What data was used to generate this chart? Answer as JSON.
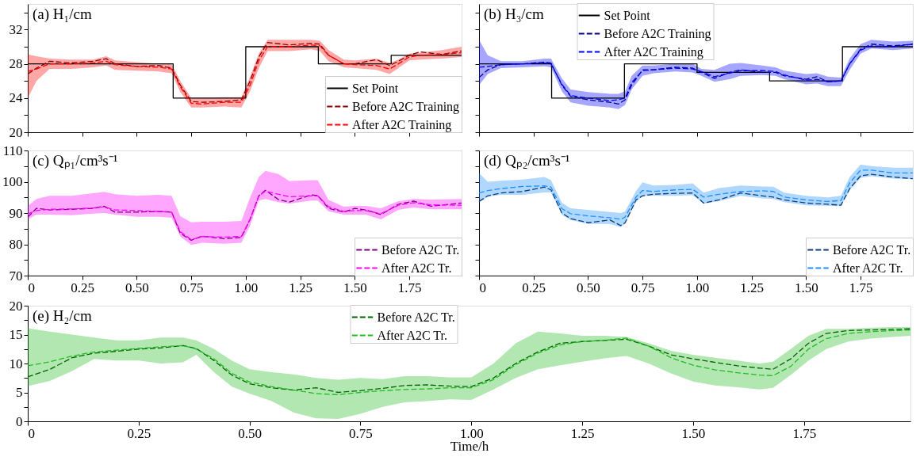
{
  "chart_data": [
    {
      "type": "line",
      "title": "(a) H₁/cm",
      "xlim": [
        0,
        1.99
      ],
      "ylim": [
        20,
        35
      ],
      "tick_labels": "y",
      "legend": "bottom right",
      "xticks": [
        0,
        0.25,
        0.5,
        0.75,
        1,
        1.25,
        1.5,
        1.75
      ],
      "yticks": [
        20,
        {
          "value": 22,
          "label": null
        },
        24,
        {
          "value": 26,
          "label": null
        },
        28,
        {
          "value": 30,
          "label": null
        },
        32,
        {
          "value": 34,
          "label": null
        }
      ],
      "x": [
        0,
        0.04,
        0.1,
        0.2,
        0.3,
        0.36,
        0.4,
        0.5,
        0.6,
        0.66,
        0.7,
        0.75,
        0.8,
        0.9,
        0.98,
        1.02,
        1.06,
        1.1,
        1.2,
        1.3,
        1.34,
        1.38,
        1.45,
        1.5,
        1.6,
        1.66,
        1.7,
        1.75,
        1.8,
        1.9,
        1.99
      ],
      "series": [
        {
          "name": "Set Point",
          "type": "step",
          "color": "#000000",
          "line_style": "solid",
          "x": [
            0,
            0.667,
            1.0,
            1.333,
            1.667,
            1.99
          ],
          "values": [
            28,
            24,
            30,
            28,
            29,
            29
          ]
        },
        {
          "name": "Before A2C Training",
          "color": "#8b0000",
          "line_style": "dashed",
          "values": [
            26.8,
            27.5,
            28.3,
            28.1,
            28.3,
            28.6,
            28.0,
            27.7,
            27.8,
            27.5,
            25.5,
            23.6,
            23.5,
            23.6,
            23.8,
            26.0,
            28.8,
            30.5,
            30.2,
            30.4,
            30.3,
            29.0,
            28.0,
            28.0,
            28.5,
            27.8,
            28.3,
            29.0,
            29.4,
            29.1,
            29.5
          ]
        },
        {
          "name": "After A2C Training",
          "color": "#ff0000",
          "line_style": "dashed",
          "values": [
            27.1,
            27.4,
            28,
            28,
            28.1,
            28.3,
            27.9,
            27.7,
            27.6,
            27.4,
            25.3,
            23.4,
            23.3,
            23.5,
            23.5,
            25.5,
            28.4,
            30,
            30,
            30.2,
            30.1,
            29,
            28,
            27.9,
            27.8,
            27.4,
            28,
            28.8,
            29,
            29.1,
            29.3
          ],
          "lower": [
            24.0,
            26,
            27.4,
            27.4,
            27.6,
            27.8,
            27.3,
            27.2,
            27.1,
            26.9,
            24.7,
            22.9,
            22.9,
            23,
            22.9,
            24.8,
            27.5,
            29.5,
            29.5,
            29.7,
            29.5,
            28.3,
            27.6,
            27.5,
            27.3,
            26.8,
            27.5,
            28.4,
            28.5,
            28.6,
            28.8
          ],
          "upper": [
            29.1,
            28.9,
            28.6,
            28.5,
            28.5,
            28.9,
            28.4,
            28.2,
            28.0,
            28,
            26,
            24,
            24.0,
            24.1,
            24.1,
            26.5,
            29.2,
            30.8,
            30.8,
            30.8,
            30.7,
            29.6,
            28.5,
            28.4,
            28.6,
            28.1,
            28.5,
            29.2,
            29.3,
            29.6,
            30.0
          ]
        }
      ]
    },
    {
      "type": "line",
      "title": "(b) H₃/cm",
      "xlim": [
        0,
        1.99
      ],
      "ylim": [
        20,
        35
      ],
      "tick_labels": false,
      "legend": "top",
      "xticks": [
        0,
        0.25,
        0.5,
        0.75,
        1,
        1.25,
        1.5,
        1.75
      ],
      "yticks": [
        20,
        {
          "value": 22,
          "label": null
        },
        24,
        {
          "value": 26,
          "label": null
        },
        28,
        {
          "value": 30,
          "label": null
        },
        32,
        {
          "value": 34,
          "label": null
        }
      ],
      "x": [
        0,
        0.04,
        0.1,
        0.2,
        0.3,
        0.33,
        0.38,
        0.42,
        0.5,
        0.6,
        0.64,
        0.67,
        0.7,
        0.75,
        0.8,
        0.9,
        0.98,
        1.02,
        1.08,
        1.15,
        1.2,
        1.3,
        1.36,
        1.4,
        1.5,
        1.55,
        1.6,
        1.66,
        1.7,
        1.75,
        1.8,
        1.9,
        1.99
      ],
      "series": [
        {
          "name": "Set Point",
          "type": "step",
          "color": "#000000",
          "line_style": "solid",
          "x": [
            0,
            0.333,
            0.667,
            1.0,
            1.333,
            1.667,
            1.99
          ],
          "values": [
            28,
            24,
            28,
            27,
            26,
            30,
            30
          ]
        },
        {
          "name": "Before A2C Training",
          "color": "#00008b",
          "line_style": "dashed",
          "values": [
            26.4,
            27.3,
            27.9,
            28.0,
            28.2,
            28.1,
            25.5,
            24.2,
            23.8,
            23.5,
            23.3,
            23.8,
            25.5,
            27.3,
            27.3,
            27.6,
            27.5,
            27.0,
            26.3,
            27.0,
            27.3,
            27.0,
            27.0,
            26.6,
            26.2,
            26.5,
            25.9,
            26.0,
            28.0,
            29.7,
            30.3,
            30.1,
            30.3
          ]
        },
        {
          "name": "After A2C Training",
          "color": "#0000ff",
          "line_style": "dashed",
          "values": [
            27.6,
            27.7,
            27.9,
            28.0,
            28.1,
            28.0,
            25.6,
            24.3,
            24.0,
            23.7,
            23.8,
            24.0,
            25.8,
            27.2,
            27.3,
            27.5,
            27.4,
            27.1,
            26.5,
            26.9,
            27.2,
            27.2,
            27.1,
            26.7,
            26.1,
            26.2,
            25.9,
            26.0,
            28.0,
            29.6,
            30.1,
            30.0,
            30.3
          ],
          "lower": [
            25.5,
            26.8,
            27.5,
            27.6,
            27.7,
            27.6,
            24.8,
            23.5,
            23.1,
            22.9,
            22.7,
            23.2,
            25.0,
            26.6,
            26.9,
            27.1,
            27.0,
            26.6,
            25.9,
            26.2,
            26.6,
            26.7,
            26.6,
            26.2,
            25.6,
            25.7,
            25.4,
            25.4,
            27.3,
            29.2,
            29.8,
            29.6,
            29.8
          ],
          "upper": [
            30.8,
            29.0,
            28.3,
            28.3,
            28.6,
            28.6,
            26.3,
            25.0,
            24.7,
            24.5,
            24.5,
            24.8,
            26.6,
            27.8,
            27.8,
            28.0,
            28.0,
            27.4,
            27.3,
            28.0,
            28.1,
            27.8,
            27.6,
            27.2,
            26.8,
            26.9,
            26.5,
            26.4,
            28.6,
            30.3,
            30.8,
            30.6,
            30.7
          ]
        }
      ]
    },
    {
      "type": "line",
      "title": "(c) Qₚ₁/cm³s⁻¹",
      "xlim": [
        0,
        1.99
      ],
      "ylim": [
        70,
        110
      ],
      "legend": "bottom right",
      "xticks": [
        0,
        0.25,
        {
          "value": 0.5,
          "label": "0.50"
        },
        0.75,
        {
          "value": 1,
          "label": "1.00"
        },
        1.25,
        {
          "value": 1.5,
          "label": "1.50"
        },
        1.75
      ],
      "yticks": [
        70,
        {
          "value": 75,
          "label": null
        },
        80,
        {
          "value": 85,
          "label": null
        },
        90,
        {
          "value": 95,
          "label": null
        },
        100,
        {
          "value": 105,
          "label": null
        },
        110
      ],
      "x": [
        0,
        0.04,
        0.1,
        0.2,
        0.3,
        0.35,
        0.4,
        0.5,
        0.6,
        0.66,
        0.7,
        0.75,
        0.8,
        0.9,
        0.98,
        1.02,
        1.06,
        1.09,
        1.15,
        1.2,
        1.3,
        1.33,
        1.38,
        1.45,
        1.5,
        1.55,
        1.62,
        1.7,
        1.77,
        1.85,
        1.99
      ],
      "series": [
        {
          "name": "Before A2C Tr.",
          "color": "#800080",
          "line_style": "dashed",
          "values": [
            88.7,
            91.5,
            91,
            91.2,
            91.5,
            92.2,
            90.3,
            90.3,
            90.5,
            90.3,
            83.5,
            81.3,
            82.6,
            81.8,
            82.2,
            88,
            95.5,
            97.3,
            94.3,
            93.5,
            95.8,
            95.6,
            91.5,
            90.3,
            91.5,
            91.0,
            89.5,
            92.8,
            93.8,
            92.2,
            93.2
          ]
        },
        {
          "name": "After A2C Tr.",
          "color": "#ff00ff",
          "line_style": "dashed",
          "values": [
            89.7,
            90.8,
            91.2,
            91.3,
            91.6,
            92.0,
            91.0,
            90.8,
            90.5,
            90.3,
            84,
            81.5,
            82.5,
            82.3,
            82.5,
            88,
            95.5,
            97,
            96,
            95.2,
            95.5,
            95.5,
            92,
            90.5,
            90.8,
            90.8,
            89.8,
            92.5,
            93.3,
            92.6,
            92.5
          ],
          "lower": [
            88,
            89.5,
            89.5,
            89.3,
            89.8,
            90,
            89.5,
            88.8,
            88.8,
            88.5,
            82.5,
            79.8,
            80.5,
            80.2,
            80.5,
            86,
            94,
            94.5,
            93.5,
            93,
            94,
            94,
            90.5,
            89.5,
            89.5,
            89.5,
            88,
            91,
            91.8,
            91.2,
            91.2
          ],
          "upper": [
            92.3,
            94.5,
            95.5,
            95.5,
            96.3,
            96.8,
            96,
            95.5,
            95.8,
            95.5,
            89,
            87,
            87.2,
            87.2,
            87.5,
            95,
            101.5,
            103.5,
            102.5,
            100.2,
            100.5,
            100.5,
            94.2,
            92,
            92.3,
            92.3,
            91.5,
            93.8,
            94.5,
            94.3,
            94.5
          ]
        }
      ]
    },
    {
      "type": "line",
      "title": "(d) Qₚ₂/cm³s⁻¹",
      "xlim": [
        0,
        1.99
      ],
      "ylim": [
        70,
        110
      ],
      "tick_labels": "x",
      "legend": "bottom right",
      "xticks": [
        0,
        0.25,
        {
          "value": 0.5,
          "label": "0.50"
        },
        0.75,
        {
          "value": 1,
          "label": "1.00"
        },
        1.25,
        {
          "value": 1.5,
          "label": "1.50"
        },
        1.75
      ],
      "yticks": [
        70,
        {
          "value": 75,
          "label": null
        },
        80,
        {
          "value": 85,
          "label": null
        },
        90,
        {
          "value": 95,
          "label": null
        },
        100,
        {
          "value": 105,
          "label": null
        },
        110
      ],
      "x": [
        0,
        0.04,
        0.1,
        0.2,
        0.3,
        0.33,
        0.38,
        0.42,
        0.5,
        0.6,
        0.65,
        0.67,
        0.72,
        0.75,
        0.8,
        0.9,
        0.98,
        1.03,
        1.1,
        1.2,
        1.3,
        1.35,
        1.4,
        1.5,
        1.6,
        1.66,
        1.7,
        1.75,
        1.8,
        1.9,
        1.99
      ],
      "series": [
        {
          "name": "Before A2C Tr.",
          "color": "#0b3d7a",
          "line_style": "dashed",
          "values": [
            93.7,
            95.5,
            96.4,
            96.9,
            98.3,
            97.4,
            90,
            88.2,
            86.9,
            87.8,
            86,
            86.9,
            94.2,
            95.5,
            96,
            96.3,
            96.4,
            93.2,
            94.2,
            96.4,
            95.5,
            95.1,
            94.2,
            93.2,
            92.8,
            92.5,
            97.8,
            101.9,
            102.4,
            101.5,
            101
          ]
        },
        {
          "name": "After A2C Tr.",
          "color": "#1e90ff",
          "line_style": "dashed",
          "values": [
            96.4,
            97.2,
            97.8,
            98.5,
            98.7,
            98.3,
            91.4,
            89.8,
            89.1,
            88.5,
            88,
            88.7,
            95.1,
            97.2,
            96.9,
            97.4,
            97.6,
            95.1,
            96,
            96.9,
            97.1,
            96.9,
            95.1,
            94.2,
            93.7,
            94,
            99.6,
            103.7,
            103.7,
            102.8,
            102.8
          ],
          "lower": [
            93.5,
            95.2,
            95.8,
            95.8,
            96.6,
            96.6,
            89.5,
            87.8,
            86.5,
            86.5,
            85.5,
            86.5,
            93.5,
            95.5,
            95.5,
            95.5,
            95.7,
            93.0,
            93.8,
            95.5,
            94.7,
            94.5,
            93.5,
            92.5,
            92.3,
            92.2,
            97.2,
            101.2,
            101.8,
            101.0,
            100.8
          ],
          "upper": [
            102.8,
            100.0,
            100.3,
            100.7,
            101.5,
            100.5,
            93.3,
            91.5,
            91.0,
            90.3,
            90.0,
            90.5,
            97.0,
            99.8,
            98.8,
            99.0,
            99.5,
            96.5,
            98.0,
            98.8,
            98.5,
            98.4,
            96.5,
            95.5,
            95.0,
            95.5,
            101.5,
            105.5,
            105.0,
            104.5,
            104.5
          ]
        }
      ]
    },
    {
      "type": "line",
      "title": "(e) H₂/cm",
      "xlabel": "Time/h",
      "xlim": [
        0,
        1.99
      ],
      "ylim": [
        0,
        20
      ],
      "legend": "top",
      "xticks": [
        0,
        0.25,
        {
          "value": 0.5,
          "label": "0.50"
        },
        0.75,
        {
          "value": 1,
          "label": "1.00"
        },
        1.25,
        {
          "value": 1.5,
          "label": "1.50"
        },
        1.75
      ],
      "yticks": [
        0,
        {
          "value": 2.5,
          "label": null
        },
        5,
        {
          "value": 7.5,
          "label": null
        },
        10,
        {
          "value": 12.5,
          "label": null
        },
        15,
        {
          "value": 17.5,
          "label": null
        },
        20
      ],
      "x": [
        0,
        0.05,
        0.1,
        0.15,
        0.2,
        0.25,
        0.3,
        0.35,
        0.38,
        0.42,
        0.46,
        0.5,
        0.55,
        0.6,
        0.65,
        0.7,
        0.75,
        0.8,
        0.85,
        0.9,
        0.95,
        1.0,
        1.05,
        1.1,
        1.15,
        1.2,
        1.25,
        1.3,
        1.35,
        1.4,
        1.45,
        1.5,
        1.55,
        1.6,
        1.65,
        1.68,
        1.72,
        1.76,
        1.8,
        1.85,
        1.9,
        1.95,
        1.99
      ],
      "series": [
        {
          "name": "Before A2C Tr.",
          "color": "#006400",
          "line_style": "dashed",
          "values": [
            7.7,
            9.0,
            11,
            11.8,
            12.1,
            12.5,
            12.7,
            13.1,
            12.6,
            10.5,
            8,
            6.5,
            5.8,
            5.4,
            5.8,
            5.0,
            5.3,
            5.7,
            6.2,
            6.3,
            6.1,
            6.0,
            7.5,
            10,
            12,
            13.5,
            13.8,
            14,
            14.2,
            13.0,
            11.5,
            10.8,
            10.2,
            9.6,
            9.2,
            9.0,
            10.8,
            13.5,
            15.2,
            15.7,
            15.8,
            15.9,
            16.0
          ]
        },
        {
          "name": "After A2C Tr.",
          "color": "#22bb22",
          "line_style": "dashed",
          "values": [
            9.6,
            10.3,
            11.3,
            12,
            12.3,
            12.6,
            12.9,
            13.1,
            12.5,
            10.8,
            8.3,
            6.8,
            6.0,
            5.4,
            4.8,
            4.6,
            5.0,
            5.3,
            5.5,
            5.6,
            5.8,
            5.8,
            7.2,
            9.8,
            11.8,
            13.2,
            13.8,
            14.0,
            14.4,
            13.0,
            11.0,
            9.7,
            8.9,
            8.4,
            8.0,
            7.9,
            9.5,
            12.5,
            14.3,
            15.2,
            15.5,
            15.7,
            15.8
          ],
          "lower": [
            6.1,
            7,
            8.7,
            10.8,
            10.5,
            10.5,
            10,
            10.2,
            11.5,
            8.5,
            6.0,
            4.8,
            3.5,
            1.5,
            0.5,
            0.4,
            1.3,
            2.5,
            3.3,
            3.5,
            3.8,
            3.7,
            5.5,
            7.5,
            9,
            9.7,
            10.3,
            10.9,
            11.3,
            10.0,
            8.3,
            6.9,
            6.2,
            5.9,
            5.5,
            5.8,
            8.0,
            10.5,
            12.5,
            13.8,
            14.3,
            14.6,
            14.8
          ],
          "upper": [
            16.1,
            15.5,
            15.0,
            14.5,
            14.0,
            14.0,
            14.5,
            14.5,
            14.0,
            12.5,
            10.5,
            9.0,
            8.5,
            8.1,
            7.5,
            7.2,
            7.5,
            7.3,
            7.8,
            7.8,
            7.6,
            7.6,
            10,
            13.5,
            15.5,
            15.2,
            14.8,
            14.8,
            14.6,
            13.5,
            12.2,
            11.5,
            11.0,
            10.5,
            10.0,
            10.3,
            12.5,
            14.8,
            16.0,
            16.0,
            16.2,
            16.3,
            16.3
          ]
        }
      ]
    }
  ]
}
